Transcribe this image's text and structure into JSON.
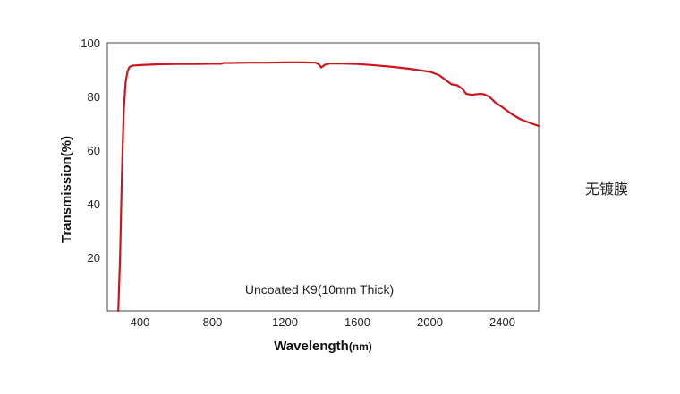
{
  "side_label": "无镀膜",
  "chart_data": {
    "type": "line",
    "title": "",
    "xlabel": "Wavelength",
    "xlabel_unit": "(nm)",
    "ylabel": "Transmission(%)",
    "annotation": "Uncoated K9(10mm Thick)",
    "xlim": [
      220,
      2600
    ],
    "ylim": [
      0,
      100
    ],
    "xticks": [
      400,
      800,
      1200,
      1600,
      2000,
      2400
    ],
    "yticks": [
      20,
      40,
      60,
      80,
      100
    ],
    "grid": false,
    "line_color": "#d0141e",
    "series": [
      {
        "x": [
          280,
          290,
          300,
          310,
          320,
          330,
          340,
          350,
          360,
          380,
          400,
          500,
          600,
          700,
          800,
          850,
          860,
          900,
          1000,
          1100,
          1200,
          1300,
          1370,
          1390,
          1400,
          1420,
          1450,
          1500,
          1600,
          1700,
          1800,
          1900,
          2000,
          2050,
          2100,
          2120,
          2150,
          2180,
          2200,
          2230,
          2250,
          2280,
          2300,
          2330,
          2360,
          2400,
          2450,
          2500,
          2550,
          2600
        ],
        "y": [
          0,
          20,
          50,
          74,
          85,
          89,
          90.8,
          91.3,
          91.5,
          91.6,
          91.7,
          92.0,
          92.1,
          92.1,
          92.2,
          92.2,
          92.5,
          92.5,
          92.6,
          92.6,
          92.7,
          92.7,
          92.6,
          91.8,
          90.8,
          91.8,
          92.3,
          92.3,
          92.1,
          91.6,
          91.0,
          90.2,
          89.2,
          88.0,
          85.5,
          84.5,
          84.2,
          82.8,
          81.0,
          80.6,
          80.8,
          81.0,
          80.8,
          79.8,
          77.8,
          76.0,
          73.5,
          71.5,
          70.2,
          69.0
        ]
      }
    ]
  }
}
